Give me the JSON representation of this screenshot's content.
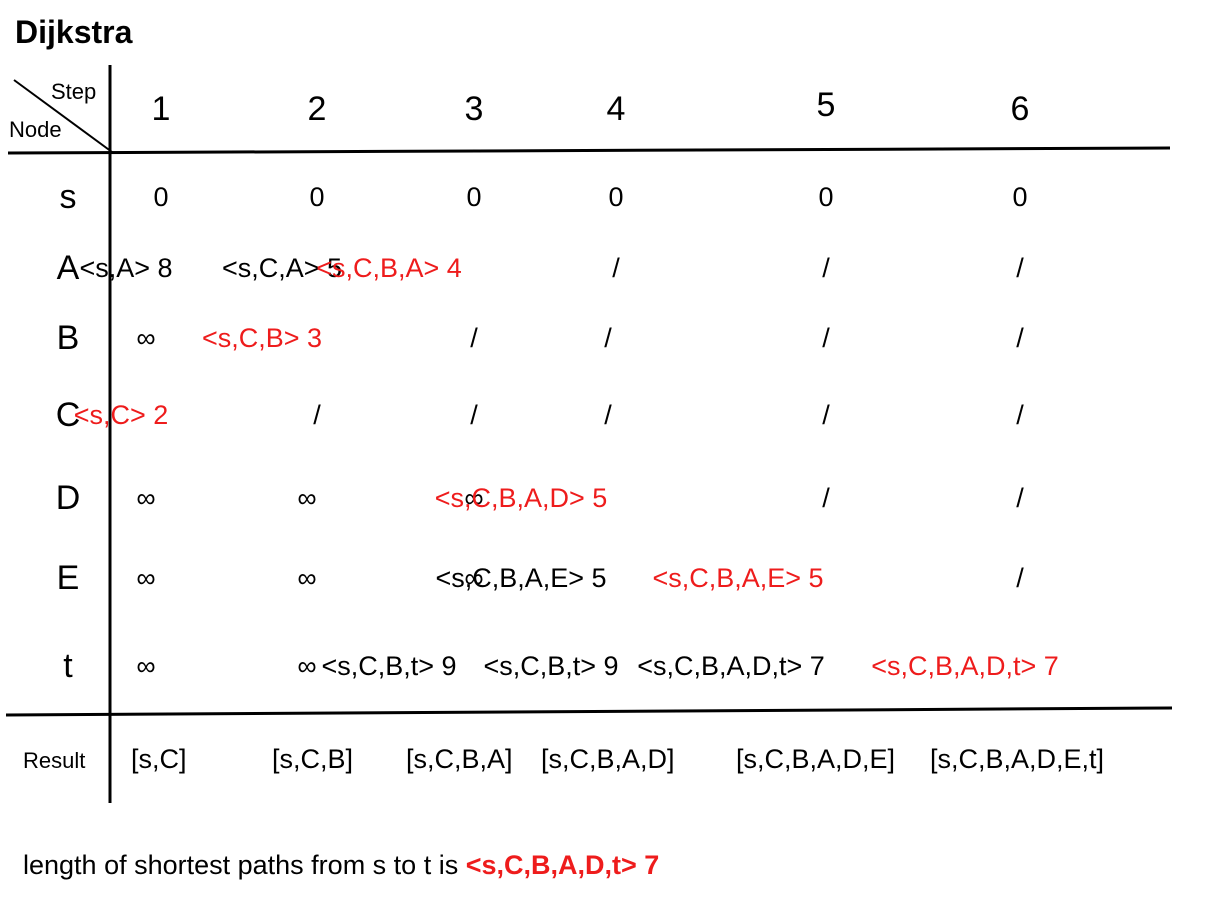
{
  "title": "Dijkstra",
  "header": {
    "step_label": "Step",
    "node_label": "Node"
  },
  "steps": [
    "1",
    "2",
    "3",
    "4",
    "5",
    "6"
  ],
  "colors": {
    "highlight": "#ee1c1c",
    "text": "#000000"
  },
  "rows": [
    {
      "node": "s",
      "cells": [
        {
          "text": "0",
          "red": false
        },
        {
          "text": "0",
          "red": false
        },
        {
          "text": "0",
          "red": false
        },
        {
          "text": "0",
          "red": false
        },
        {
          "text": "0",
          "red": false
        },
        {
          "text": "0",
          "red": false
        }
      ]
    },
    {
      "node": "A",
      "cells": [
        {
          "text": "<s,A> 8",
          "red": false
        },
        {
          "text": "<s,C,A> 5",
          "red": false
        },
        {
          "text": "<s,C,B,A> 4",
          "red": true
        },
        {
          "text": "/",
          "red": false
        },
        {
          "text": "/",
          "red": false
        },
        {
          "text": "/",
          "red": false
        }
      ]
    },
    {
      "node": "B",
      "cells": [
        {
          "text": "∞",
          "red": false
        },
        {
          "text": "<s,C,B> 3",
          "red": true
        },
        {
          "text": "/",
          "red": false
        },
        {
          "text": "/",
          "red": false
        },
        {
          "text": "/",
          "red": false
        },
        {
          "text": "/",
          "red": false
        }
      ]
    },
    {
      "node": "C",
      "cells": [
        {
          "text": "<s,C> 2",
          "red": true
        },
        {
          "text": "/",
          "red": false
        },
        {
          "text": "/",
          "red": false
        },
        {
          "text": "/",
          "red": false
        },
        {
          "text": "/",
          "red": false
        },
        {
          "text": "/",
          "red": false
        }
      ]
    },
    {
      "node": "D",
      "cells": [
        {
          "text": "∞",
          "red": false
        },
        {
          "text": "∞",
          "red": false
        },
        {
          "text": "∞",
          "red": false
        },
        {
          "text": "<s,C,B,A,D> 5",
          "red": true
        },
        {
          "text": "/",
          "red": false
        },
        {
          "text": "/",
          "red": false
        }
      ]
    },
    {
      "node": "E",
      "cells": [
        {
          "text": "∞",
          "red": false
        },
        {
          "text": "∞",
          "red": false
        },
        {
          "text": "∞",
          "red": false
        },
        {
          "text": "<s,C,B,A,E> 5",
          "red": false
        },
        {
          "text": "<s,C,B,A,E> 5",
          "red": true
        },
        {
          "text": "/",
          "red": false
        }
      ]
    },
    {
      "node": "t",
      "cells": [
        {
          "text": "∞",
          "red": false
        },
        {
          "text": "∞",
          "red": false
        },
        {
          "text": "<s,C,B,t> 9",
          "red": false
        },
        {
          "text": "<s,C,B,t> 9",
          "red": false
        },
        {
          "text": "<s,C,B,A,D,t> 7",
          "red": false
        },
        {
          "text": "<s,C,B,A,D,t> 7",
          "red": true
        }
      ]
    }
  ],
  "result": {
    "label": "Result",
    "values": [
      "[s,C]",
      "[s,C,B]",
      "[s,C,B,A]",
      "[s,C,B,A,D]",
      "[s,C,B,A,D,E]",
      "[s,C,B,A,D,E,t]"
    ]
  },
  "footer": {
    "text": "length of shortest paths from s to t is ",
    "answer": "<s,C,B,A,D,t> 7"
  }
}
